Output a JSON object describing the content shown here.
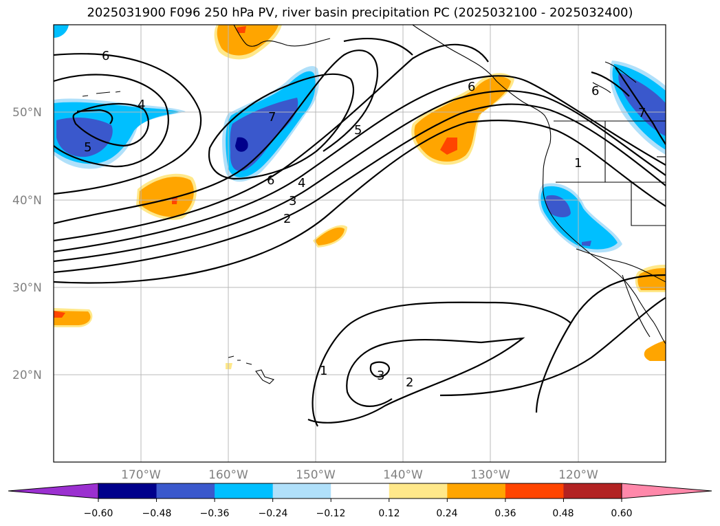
{
  "title": "2025031900 F096 250 hPa PV, river basin precipitation PC (2025032100 - 2025032400)",
  "lat_labels": [
    "50°N",
    "40°N",
    "30°N",
    "20°N"
  ],
  "lon_labels": [
    "170°W",
    "160°W",
    "150°W",
    "140°W",
    "130°W",
    "120°W"
  ],
  "contour_labels": [
    "6",
    "4",
    "5",
    "7",
    "6",
    "5",
    "6",
    "4",
    "3",
    "2",
    "1",
    "6",
    "7",
    "1",
    "2",
    "3"
  ],
  "colorbar": {
    "ticks": [
      "−0.60",
      "−0.48",
      "−0.36",
      "−0.24",
      "−0.12",
      "0.12",
      "0.24",
      "0.36",
      "0.48",
      "0.60"
    ],
    "colors": [
      "#9b30d0",
      "#00008b",
      "#3a58cc",
      "#00bfff",
      "#b0e0fa",
      "#ffffff",
      "#ffe88a",
      "#ffa500",
      "#ff4500",
      "#b22222",
      "#ff88aa"
    ]
  }
}
